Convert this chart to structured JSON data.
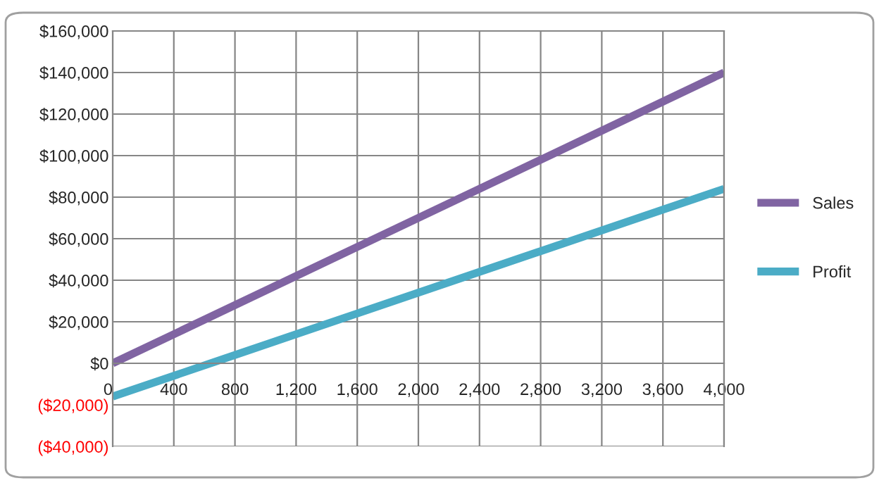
{
  "chart_data": {
    "type": "line",
    "x": [
      0,
      4000
    ],
    "series": [
      {
        "name": "Sales",
        "color": "#8064a2",
        "values": [
          0,
          140000
        ]
      },
      {
        "name": "Profit",
        "color": "#4bacc6",
        "values": [
          -16000,
          84000
        ]
      }
    ],
    "xlim": [
      0,
      4000
    ],
    "xticks": [
      0,
      400,
      800,
      {
        "value": 1200,
        "label": "1,200"
      },
      {
        "value": 1600,
        "label": "1,600"
      },
      {
        "value": 2000,
        "label": "2,000"
      },
      {
        "value": 2400,
        "label": "2,400"
      },
      {
        "value": 2800,
        "label": "2,800"
      },
      {
        "value": 3200,
        "label": "3,200"
      },
      {
        "value": 3600,
        "label": "3,600"
      },
      {
        "value": 4000,
        "label": "4,000"
      }
    ],
    "ylim": [
      -40000,
      160000
    ],
    "yticks": [
      {
        "value": -40000,
        "label": "($40,000)"
      },
      {
        "value": -20000,
        "label": "($20,000)"
      },
      {
        "value": 0,
        "label": "$0"
      },
      {
        "value": 20000,
        "label": "$20,000"
      },
      {
        "value": 40000,
        "label": "$40,000"
      },
      {
        "value": 60000,
        "label": "$60,000"
      },
      {
        "value": 80000,
        "label": "$80,000"
      },
      {
        "value": 100000,
        "label": "$100,000"
      },
      {
        "value": 120000,
        "label": "$120,000"
      },
      {
        "value": 140000,
        "label": "$140,000"
      },
      {
        "value": 160000,
        "label": "$160,000"
      }
    ],
    "grid": true,
    "legend": "right",
    "marker": "none",
    "line_style": "solid"
  }
}
